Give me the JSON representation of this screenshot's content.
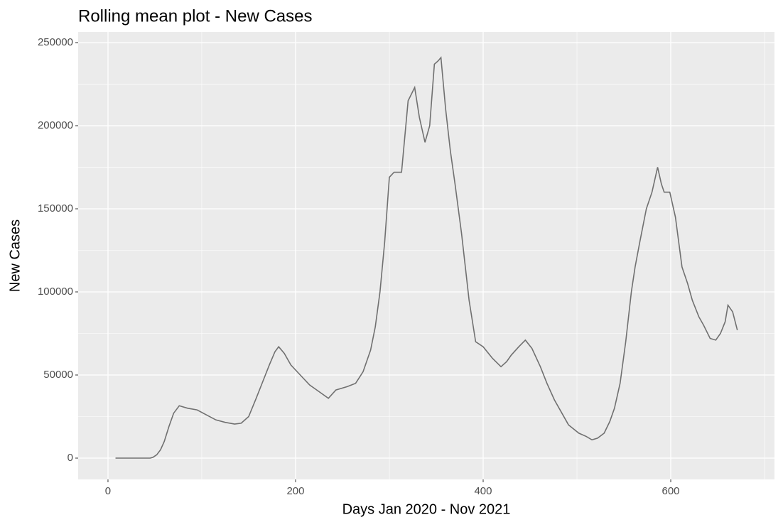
{
  "chart_data": {
    "type": "line",
    "title": "Rolling mean plot - New Cases",
    "x_label": "Days Jan 2020 - Nov 2021",
    "y_label": "New Cases",
    "series": [
      {
        "name": "New Cases",
        "color": "#707070",
        "x": [
          8,
          20,
          35,
          45,
          48,
          52,
          56,
          60,
          65,
          70,
          76,
          85,
          95,
          105,
          115,
          125,
          135,
          142,
          150,
          158,
          165,
          172,
          178,
          182,
          188,
          195,
          205,
          215,
          225,
          235,
          243,
          255,
          264,
          272,
          280,
          285,
          290,
          295,
          300,
          305,
          313,
          320,
          327,
          332,
          338,
          343,
          348,
          352,
          355,
          360,
          365,
          370,
          377,
          385,
          392,
          400,
          410,
          419,
          425,
          430,
          438,
          445,
          452,
          461,
          468,
          476,
          484,
          491,
          502,
          510,
          516,
          522,
          529,
          535,
          540,
          546,
          552,
          558,
          562,
          567,
          574,
          580,
          586,
          590,
          593,
          599,
          605,
          612,
          618,
          623,
          630,
          635,
          642,
          648,
          653,
          658,
          661,
          666,
          671
        ],
        "values": [
          0,
          0,
          0,
          0,
          500,
          2000,
          5000,
          10000,
          19000,
          27000,
          31500,
          30000,
          29000,
          26000,
          23000,
          21500,
          20500,
          21000,
          25000,
          36000,
          46000,
          56000,
          64000,
          67000,
          63000,
          56000,
          50000,
          44000,
          40000,
          36000,
          41000,
          43000,
          45000,
          52000,
          65000,
          79000,
          100000,
          130000,
          169000,
          172000,
          172000,
          215000,
          223000,
          205000,
          190000,
          200000,
          237000,
          239000,
          241000,
          210000,
          185000,
          165000,
          135000,
          95000,
          70000,
          67000,
          60000,
          55000,
          58000,
          62000,
          67000,
          71000,
          66000,
          55000,
          45000,
          35000,
          27000,
          20000,
          15000,
          13000,
          11000,
          12000,
          15000,
          22000,
          30000,
          45000,
          70000,
          100000,
          115000,
          130000,
          150000,
          160000,
          175000,
          165000,
          160000,
          160000,
          145000,
          115000,
          105000,
          95000,
          85000,
          80000,
          72000,
          71000,
          75000,
          82000,
          92000,
          88000,
          77000
        ]
      }
    ],
    "xlim": [
      -31.8,
      710.6
    ],
    "ylim": [
      -12820,
      256400
    ],
    "xticks": [
      0,
      200,
      400,
      600
    ],
    "yticks": [
      0,
      50000,
      100000,
      150000,
      200000,
      250000
    ],
    "grid": true
  }
}
